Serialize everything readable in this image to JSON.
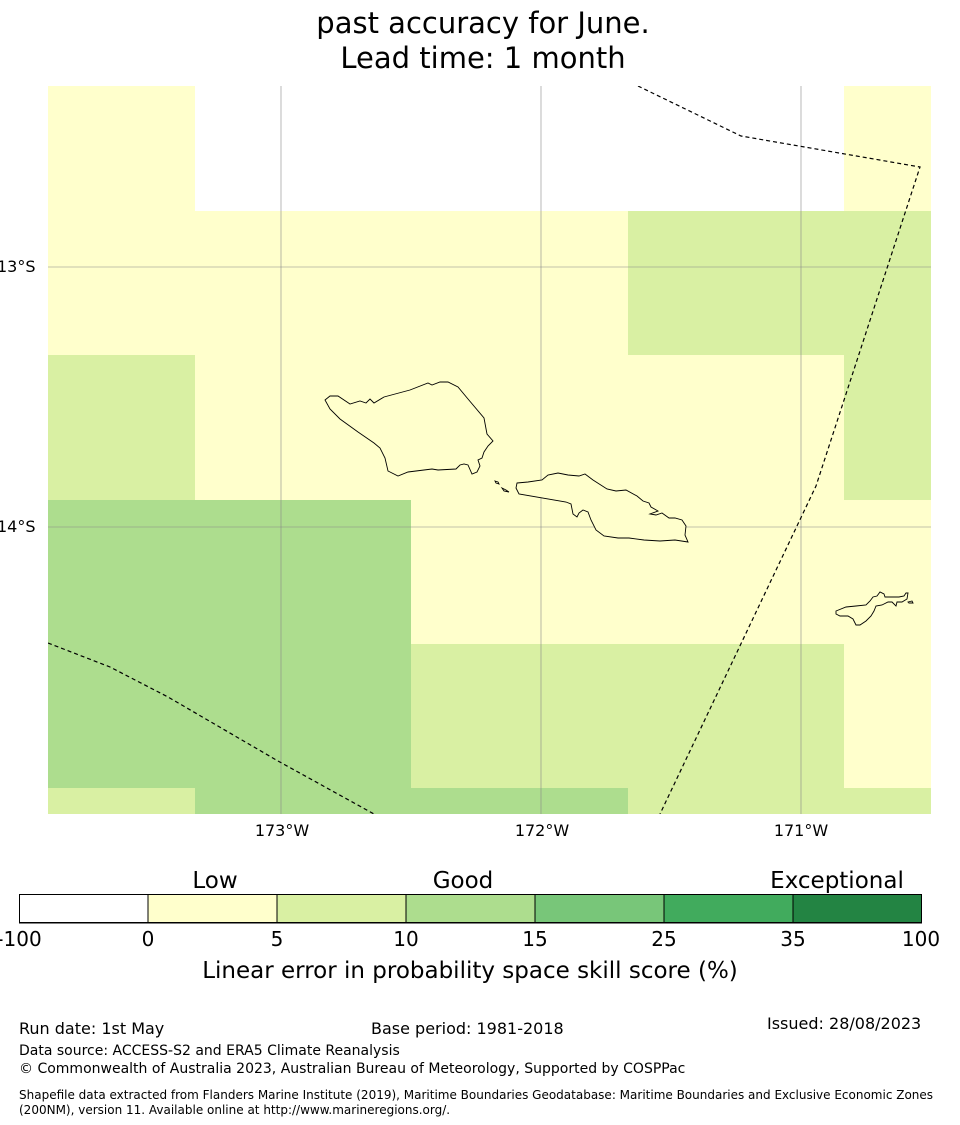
{
  "title": {
    "line1": "past accuracy for June.",
    "line2": "Lead time: 1 month"
  },
  "map": {
    "lat_labels": [
      "13°S",
      "14°S"
    ],
    "lon_labels": [
      "173°W",
      "172°W",
      "171°W"
    ],
    "colors": {
      "class_0_5": "#ffffcc",
      "class_5_10": "#d9f0a3",
      "class_10_15": "#addd8e",
      "coastline": "#000000",
      "grid": "#888888"
    }
  },
  "legend": {
    "categories": [
      "Low",
      "Good",
      "Exceptional"
    ],
    "ticks": [
      "-100",
      "0",
      "5",
      "10",
      "15",
      "25",
      "35",
      "100"
    ],
    "colors": [
      "#ffffff",
      "#ffffcc",
      "#d9f0a3",
      "#addd8e",
      "#78c679",
      "#41ab5d",
      "#238443"
    ],
    "title": "Linear error in probability space skill score (%)"
  },
  "footer": {
    "run_date": "Run date: 1st May",
    "base_period": "Base period: 1981-2018",
    "issued": "Issued: 28/08/2023",
    "data_source": "Data source: ACCESS-S2 and ERA5 Climate Reanalysis",
    "copyright": "© Commonwealth of Australia 2023, Australian Bureau of Meteorology, Supported by COSPPac",
    "shapefile_line1": "Shapefile data extracted from Flanders Marine Institute (2019), Maritime Boundaries Geodatabase: Maritime Boundaries and Exclusive Economic Zones",
    "shapefile_line2": "(200NM), version 11. Available online at http://www.marineregions.org/."
  }
}
